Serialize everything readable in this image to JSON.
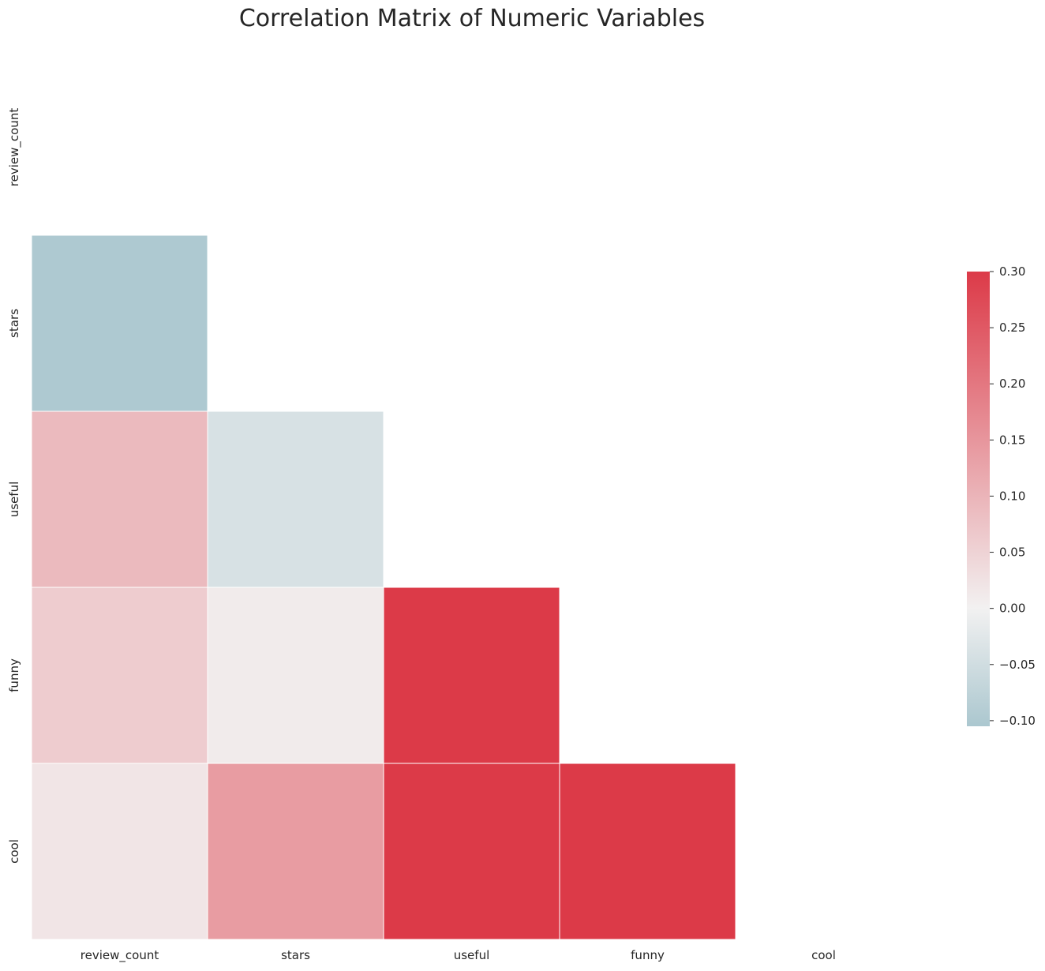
{
  "chart_data": {
    "type": "heatmap",
    "title": "Correlation Matrix of Numeric Variables",
    "mask": "upper-triangle-including-diagonal",
    "variables": [
      "review_count",
      "stars",
      "useful",
      "funny",
      "cool"
    ],
    "cells": [
      {
        "row": "stars",
        "col": "review_count",
        "value": -0.1
      },
      {
        "row": "useful",
        "col": "review_count",
        "value": 0.09
      },
      {
        "row": "useful",
        "col": "stars",
        "value": -0.04
      },
      {
        "row": "funny",
        "col": "review_count",
        "value": 0.06
      },
      {
        "row": "funny",
        "col": "stars",
        "value": 0.01
      },
      {
        "row": "funny",
        "col": "useful",
        "value": 0.3
      },
      {
        "row": "cool",
        "col": "review_count",
        "value": 0.02
      },
      {
        "row": "cool",
        "col": "stars",
        "value": 0.14
      },
      {
        "row": "cool",
        "col": "useful",
        "value": 0.3
      },
      {
        "row": "cool",
        "col": "funny",
        "value": 0.3
      }
    ],
    "colorbar": {
      "vmin": -0.105,
      "vmax": 0.3,
      "ticks": [
        "0.30",
        "0.25",
        "0.20",
        "0.15",
        "0.10",
        "0.05",
        "0.00",
        "−0.05",
        "−0.10"
      ],
      "tick_values": [
        0.3,
        0.25,
        0.2,
        0.15,
        0.1,
        0.05,
        0.0,
        -0.05,
        -0.1
      ],
      "color_low": "#abc7cf",
      "color_mid": "#f2f1f1",
      "color_high": "#dc3a48"
    }
  }
}
